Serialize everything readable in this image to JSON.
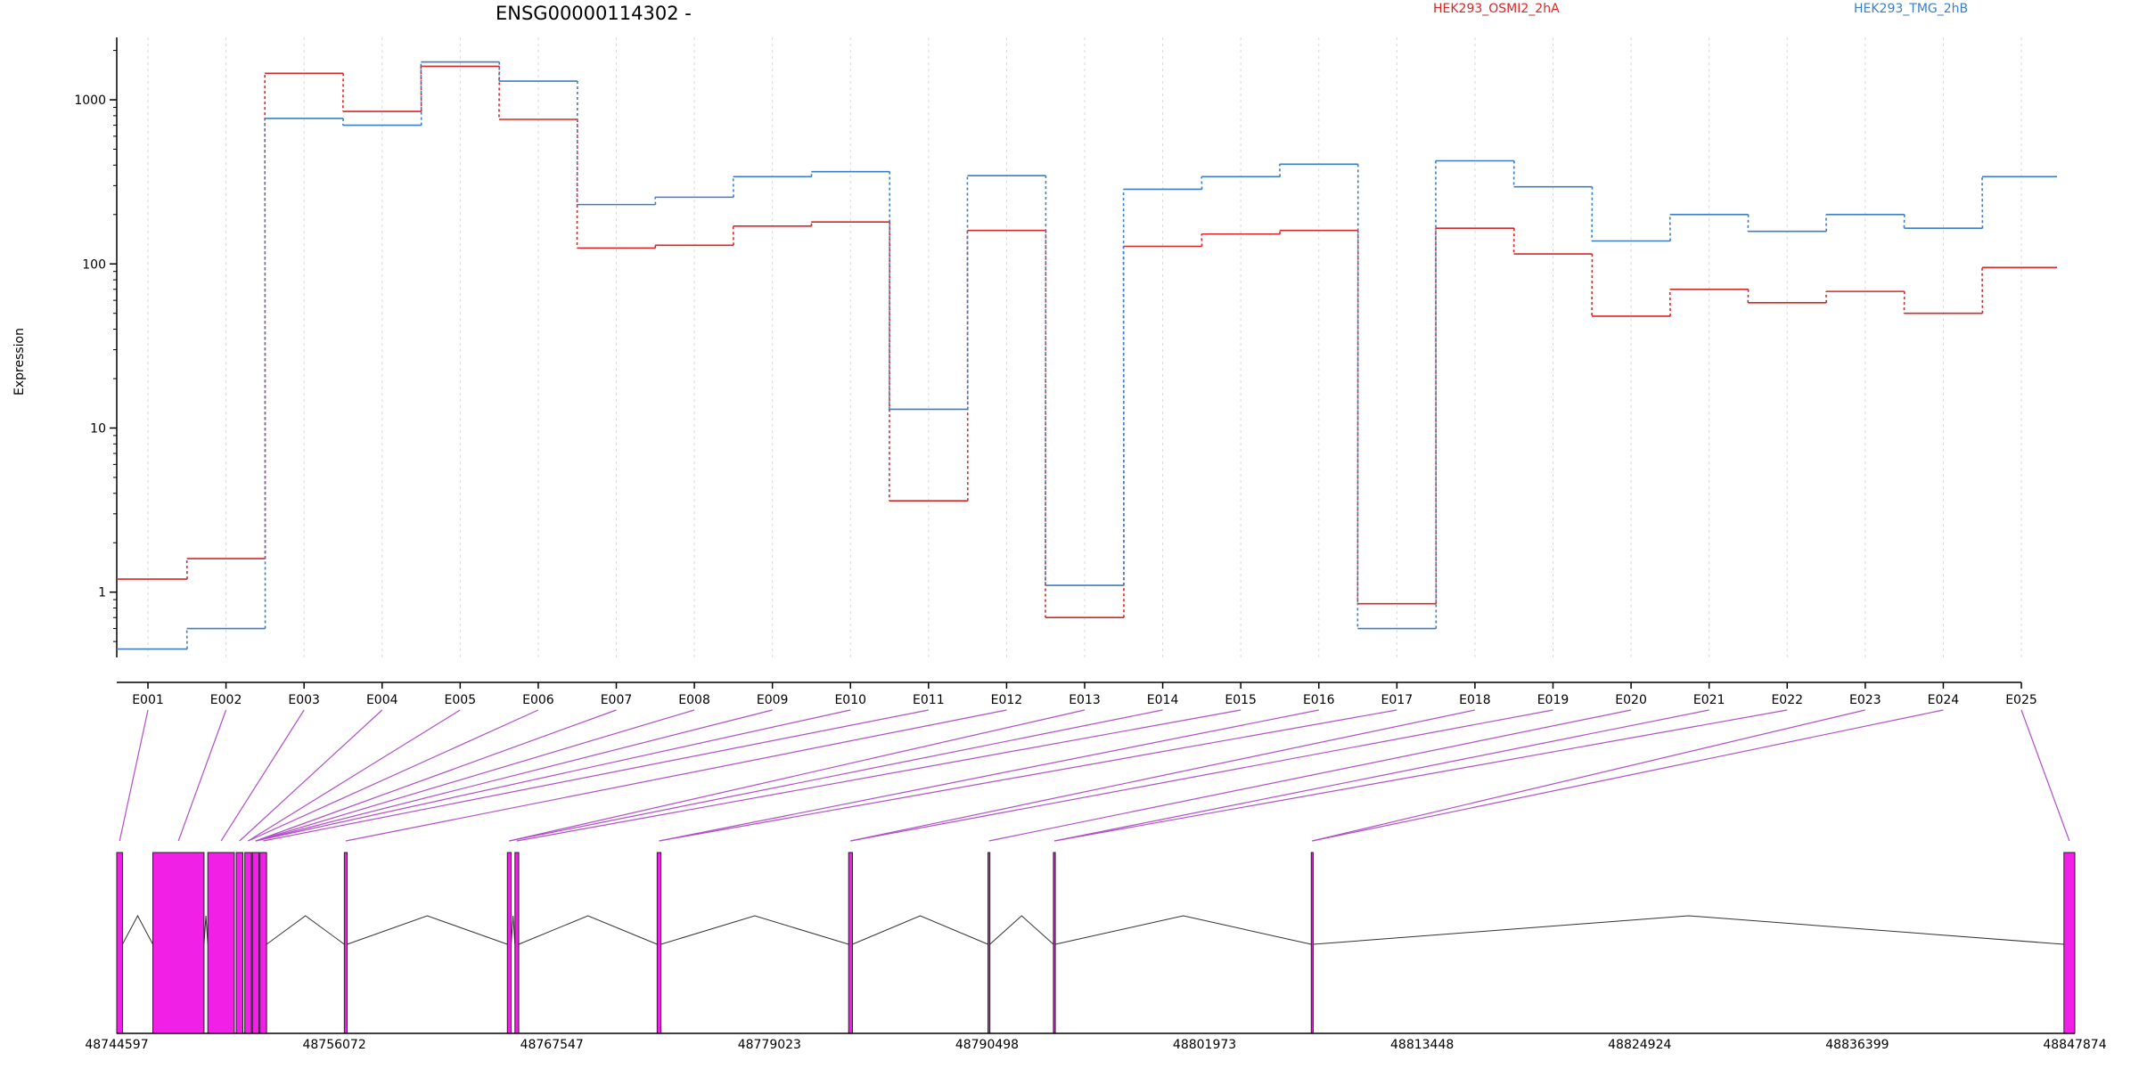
{
  "chart_data": {
    "type": "line",
    "title": "ENSG00000114302 -",
    "ylabel": "Expression",
    "xlabel": "",
    "yscale": "log",
    "ylim": [
      0.4,
      2400
    ],
    "yticks": [
      1,
      10,
      100,
      1000
    ],
    "grid": "vertical dotted lines at exon labels",
    "legend_placement": "top",
    "categories": [
      "E001",
      "E002",
      "E003",
      "E004",
      "E005",
      "E006",
      "E007",
      "E008",
      "E009",
      "E010",
      "E011",
      "E012",
      "E013",
      "E014",
      "E015",
      "E016",
      "E017",
      "E018",
      "E019",
      "E020",
      "E021",
      "E022",
      "E023",
      "E024",
      "E025"
    ],
    "series": [
      {
        "name": "HEK293_OSMI2_2hA",
        "color": "#d62728",
        "values": [
          1.2,
          1.6,
          1450,
          850,
          1600,
          760,
          125,
          130,
          170,
          180,
          3.6,
          160,
          0.7,
          128,
          152,
          160,
          0.85,
          165,
          115,
          48,
          70,
          58,
          68,
          50,
          95
        ]
      },
      {
        "name": "HEK293_TMG_2hB",
        "color": "#3b7ec4",
        "values": [
          0.45,
          0.6,
          770,
          700,
          1700,
          1300,
          230,
          255,
          340,
          365,
          13,
          345,
          1.1,
          285,
          340,
          405,
          0.6,
          425,
          295,
          138,
          200,
          158,
          200,
          165,
          340
        ]
      }
    ],
    "genomic": {
      "range": [
        48744597,
        48847874
      ],
      "ticks": [
        48744597,
        48756072,
        48767547,
        48779023,
        48790498,
        48801973,
        48813448,
        48824924,
        48836399,
        48847874
      ],
      "exons": [
        [
          48744597,
          48744900
        ],
        [
          48746500,
          48749200
        ],
        [
          48749400,
          48750800
        ],
        [
          48750900,
          48751250
        ],
        [
          48751350,
          48751700
        ],
        [
          48751750,
          48752100
        ],
        [
          48752150,
          48752500
        ],
        [
          48756600,
          48756750
        ],
        [
          48765200,
          48765400
        ],
        [
          48765600,
          48765800
        ],
        [
          48773100,
          48773300
        ],
        [
          48783200,
          48783400
        ],
        [
          48790550,
          48790650
        ],
        [
          48794000,
          48794100
        ],
        [
          48807600,
          48807700
        ],
        [
          48847300,
          48847874
        ]
      ],
      "mapping": [
        0,
        1,
        2,
        3,
        4,
        4,
        5,
        5,
        5,
        5,
        6,
        7,
        8,
        8,
        9,
        10,
        10,
        11,
        11,
        12,
        13,
        13,
        14,
        14,
        15
      ],
      "exon_color": "#f020e6",
      "connector_color": "#b04fc7"
    }
  }
}
